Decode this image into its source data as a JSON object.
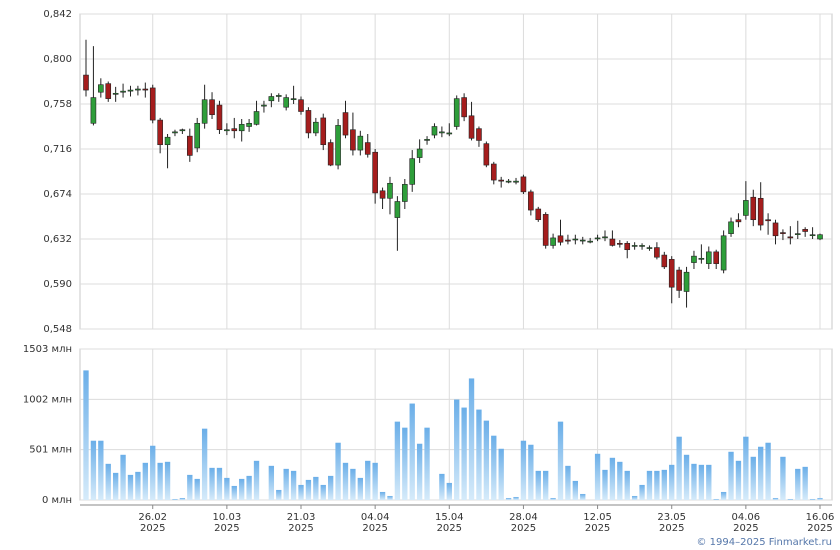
{
  "chart_data": [
    {
      "type": "candlestick",
      "ylim": [
        0.548,
        0.842
      ],
      "yticks": [
        {
          "value": 0.548,
          "label": "0,548"
        },
        {
          "value": 0.59,
          "label": "0,590"
        },
        {
          "value": 0.632,
          "label": "0,632"
        },
        {
          "value": 0.674,
          "label": "0,674"
        },
        {
          "value": 0.716,
          "label": "0,716"
        },
        {
          "value": 0.758,
          "label": "0,758"
        },
        {
          "value": 0.8,
          "label": "0,800"
        },
        {
          "value": 0.842,
          "label": "0,842"
        }
      ],
      "up_color": "#2e9e3a",
      "down_color": "#a51d1d",
      "grid": true,
      "open": [
        0.785,
        0.74,
        0.769,
        0.777,
        0.767,
        0.769,
        0.77,
        0.771,
        0.772,
        0.773,
        0.743,
        0.72,
        0.731,
        0.733,
        0.728,
        0.717,
        0.74,
        0.762,
        0.757,
        0.733,
        0.735,
        0.733,
        0.737,
        0.739,
        0.756,
        0.761,
        0.765,
        0.755,
        0.762,
        0.762,
        0.752,
        0.731,
        0.745,
        0.722,
        0.701,
        0.75,
        0.734,
        0.715,
        0.722,
        0.713,
        0.677,
        0.67,
        0.652,
        0.667,
        0.683,
        0.708,
        0.724,
        0.729,
        0.731,
        0.73,
        0.737,
        0.764,
        0.747,
        0.735,
        0.721,
        0.702,
        0.687,
        0.686,
        0.685,
        0.69,
        0.676,
        0.66,
        0.655,
        0.626,
        0.635,
        0.631,
        0.632,
        0.631,
        0.63,
        0.633,
        0.634,
        0.632,
        0.628,
        0.628,
        0.626,
        0.626,
        0.624,
        0.624,
        0.617,
        0.613,
        0.603,
        0.583,
        0.61,
        0.613,
        0.609,
        0.62,
        0.603,
        0.637,
        0.65,
        0.654,
        0.671,
        0.67,
        0.65,
        0.647,
        0.638,
        0.634,
        0.637,
        0.641,
        0.636,
        0.632
      ],
      "high": [
        0.818,
        0.812,
        0.782,
        0.779,
        0.774,
        0.777,
        0.775,
        0.775,
        0.778,
        0.776,
        0.745,
        0.73,
        0.734,
        0.735,
        0.735,
        0.745,
        0.776,
        0.769,
        0.761,
        0.74,
        0.745,
        0.744,
        0.744,
        0.761,
        0.761,
        0.768,
        0.768,
        0.767,
        0.775,
        0.765,
        0.755,
        0.745,
        0.749,
        0.725,
        0.744,
        0.761,
        0.75,
        0.733,
        0.73,
        0.716,
        0.68,
        0.69,
        0.672,
        0.688,
        0.715,
        0.725,
        0.728,
        0.74,
        0.737,
        0.74,
        0.766,
        0.768,
        0.76,
        0.737,
        0.723,
        0.704,
        0.69,
        0.688,
        0.689,
        0.692,
        0.678,
        0.662,
        0.657,
        0.637,
        0.65,
        0.636,
        0.636,
        0.634,
        0.633,
        0.636,
        0.64,
        0.64,
        0.631,
        0.63,
        0.629,
        0.628,
        0.626,
        0.629,
        0.62,
        0.616,
        0.606,
        0.606,
        0.621,
        0.627,
        0.625,
        0.622,
        0.64,
        0.652,
        0.656,
        0.686,
        0.678,
        0.685,
        0.656,
        0.65,
        0.641,
        0.644,
        0.649,
        0.643,
        0.643,
        0.637
      ],
      "low": [
        0.765,
        0.738,
        0.764,
        0.76,
        0.76,
        0.764,
        0.765,
        0.766,
        0.764,
        0.74,
        0.712,
        0.698,
        0.728,
        0.73,
        0.704,
        0.713,
        0.735,
        0.744,
        0.73,
        0.729,
        0.726,
        0.723,
        0.732,
        0.738,
        0.75,
        0.755,
        0.76,
        0.752,
        0.758,
        0.748,
        0.726,
        0.728,
        0.715,
        0.7,
        0.697,
        0.726,
        0.71,
        0.71,
        0.708,
        0.665,
        0.66,
        0.655,
        0.621,
        0.66,
        0.676,
        0.703,
        0.72,
        0.726,
        0.727,
        0.728,
        0.734,
        0.742,
        0.724,
        0.718,
        0.699,
        0.683,
        0.68,
        0.684,
        0.683,
        0.674,
        0.654,
        0.648,
        0.623,
        0.623,
        0.626,
        0.627,
        0.627,
        0.627,
        0.628,
        0.63,
        0.63,
        0.625,
        0.624,
        0.614,
        0.622,
        0.622,
        0.621,
        0.613,
        0.604,
        0.572,
        0.577,
        0.568,
        0.604,
        0.609,
        0.604,
        0.604,
        0.6,
        0.634,
        0.643,
        0.65,
        0.644,
        0.64,
        0.636,
        0.627,
        0.631,
        0.627,
        0.632,
        0.634,
        0.632,
        0.631
      ],
      "close": [
        0.771,
        0.764,
        0.776,
        0.763,
        0.768,
        0.77,
        0.771,
        0.772,
        0.771,
        0.743,
        0.72,
        0.727,
        0.732,
        0.734,
        0.71,
        0.74,
        0.762,
        0.748,
        0.734,
        0.734,
        0.733,
        0.739,
        0.74,
        0.751,
        0.757,
        0.765,
        0.766,
        0.764,
        0.763,
        0.751,
        0.731,
        0.741,
        0.72,
        0.701,
        0.738,
        0.729,
        0.715,
        0.728,
        0.711,
        0.675,
        0.67,
        0.684,
        0.667,
        0.683,
        0.707,
        0.716,
        0.725,
        0.737,
        0.732,
        0.731,
        0.763,
        0.746,
        0.726,
        0.724,
        0.701,
        0.687,
        0.686,
        0.686,
        0.686,
        0.676,
        0.659,
        0.65,
        0.626,
        0.633,
        0.629,
        0.63,
        0.632,
        0.631,
        0.63,
        0.633,
        0.634,
        0.626,
        0.627,
        0.622,
        0.626,
        0.626,
        0.624,
        0.615,
        0.606,
        0.587,
        0.584,
        0.601,
        0.616,
        0.614,
        0.62,
        0.609,
        0.635,
        0.648,
        0.648,
        0.668,
        0.65,
        0.645,
        0.649,
        0.635,
        0.637,
        0.633,
        0.637,
        0.639,
        0.636,
        0.636
      ]
    },
    {
      "type": "bar",
      "ylim": [
        0,
        1503
      ],
      "yticks": [
        {
          "value": 0,
          "label": "0 млн"
        },
        {
          "value": 501,
          "label": "501 млн"
        },
        {
          "value": 1002,
          "label": "1002 млн"
        },
        {
          "value": 1503,
          "label": "1503 млн"
        }
      ],
      "grid": true,
      "color": "#7ab8ea",
      "categories": [
        null,
        null,
        null,
        null,
        null,
        null,
        null,
        null,
        null,
        "26.02",
        null,
        null,
        null,
        null,
        null,
        null,
        null,
        null,
        null,
        "10.03",
        null,
        null,
        null,
        null,
        null,
        null,
        null,
        null,
        null,
        "21.03",
        null,
        null,
        null,
        null,
        null,
        null,
        null,
        null,
        null,
        "04.04",
        null,
        null,
        null,
        null,
        null,
        null,
        null,
        null,
        null,
        "15.04",
        null,
        null,
        null,
        null,
        null,
        null,
        null,
        null,
        null,
        "28.04",
        null,
        null,
        null,
        null,
        null,
        null,
        null,
        null,
        null,
        "12.05",
        null,
        null,
        null,
        null,
        null,
        null,
        null,
        null,
        null,
        "23.05",
        null,
        null,
        null,
        null,
        null,
        null,
        null,
        null,
        null,
        "04.06",
        null,
        null,
        null,
        null,
        null,
        null,
        null,
        null,
        null,
        "16.06"
      ],
      "category_years": [
        null,
        null,
        null,
        null,
        null,
        null,
        null,
        null,
        null,
        "2025",
        null,
        null,
        null,
        null,
        null,
        null,
        null,
        null,
        null,
        "2025",
        null,
        null,
        null,
        null,
        null,
        null,
        null,
        null,
        null,
        "2025",
        null,
        null,
        null,
        null,
        null,
        null,
        null,
        null,
        null,
        "2025",
        null,
        null,
        null,
        null,
        null,
        null,
        null,
        null,
        null,
        "2025",
        null,
        null,
        null,
        null,
        null,
        null,
        null,
        null,
        null,
        "2025",
        null,
        null,
        null,
        null,
        null,
        null,
        null,
        null,
        null,
        "2025",
        null,
        null,
        null,
        null,
        null,
        null,
        null,
        null,
        null,
        "2025",
        null,
        null,
        null,
        null,
        null,
        null,
        null,
        null,
        null,
        "2025",
        null,
        null,
        null,
        null,
        null,
        null,
        null,
        null,
        null,
        "2025"
      ],
      "values": [
        1290,
        590,
        590,
        360,
        270,
        450,
        250,
        280,
        370,
        540,
        370,
        380,
        10,
        20,
        250,
        210,
        710,
        320,
        320,
        220,
        140,
        210,
        240,
        390,
        0,
        340,
        100,
        310,
        290,
        150,
        200,
        230,
        150,
        240,
        570,
        370,
        310,
        220,
        390,
        370,
        80,
        40,
        780,
        720,
        960,
        560,
        720,
        0,
        260,
        170,
        1000,
        920,
        1210,
        900,
        790,
        640,
        510,
        20,
        30,
        590,
        550,
        290,
        290,
        20,
        780,
        340,
        190,
        60,
        0,
        460,
        300,
        420,
        380,
        290,
        40,
        150,
        290,
        290,
        300,
        350,
        630,
        450,
        360,
        350,
        350,
        10,
        80,
        480,
        390,
        630,
        430,
        530,
        570,
        20,
        430,
        10,
        310,
        330,
        10,
        20
      ]
    }
  ],
  "footer": "© 1994–2025 Finmarket.ru"
}
